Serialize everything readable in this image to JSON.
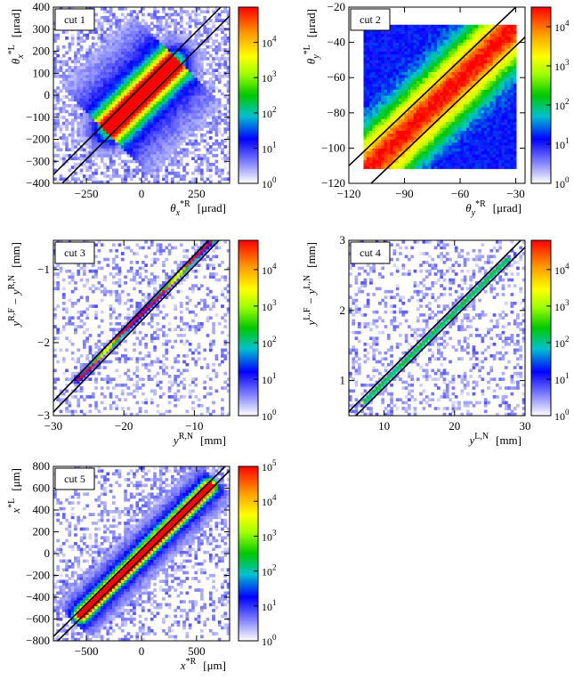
{
  "chart_data": [
    {
      "type": "heatmap",
      "panel": "cut-1",
      "cut_label": "cut 1",
      "xlabel": {
        "sym": "θ",
        "sub": "x",
        "sup": "*R",
        "unit": "[μrad]"
      },
      "ylabel": {
        "sym": "θ",
        "sub": "x",
        "sup": "*L",
        "unit": "[μrad]"
      },
      "xlim": [
        -400,
        400
      ],
      "ylim": [
        -400,
        400
      ],
      "xticks": [
        {
          "v": -250,
          "label": "−250"
        },
        {
          "v": 0,
          "label": "0"
        },
        {
          "v": 250,
          "label": "250"
        }
      ],
      "yticks": [
        {
          "v": -400,
          "label": "−400"
        },
        {
          "v": -300,
          "label": "−300"
        },
        {
          "v": -200,
          "label": "−200"
        },
        {
          "v": -100,
          "label": "−100"
        },
        {
          "v": 0,
          "label": "0"
        },
        {
          "v": 100,
          "label": "100"
        },
        {
          "v": 200,
          "label": "200"
        },
        {
          "v": 300,
          "label": "300"
        },
        {
          "v": 400,
          "label": "400"
        }
      ],
      "cut_lines": [
        {
          "slope": 1,
          "intercept": 40
        },
        {
          "slope": 1,
          "intercept": -40
        }
      ],
      "band_points": [
        [
          -150,
          -150
        ],
        [
          150,
          150
        ]
      ],
      "band_width": 25,
      "colorbar": {
        "scale": "log",
        "min_exp": 0,
        "max_exp": 5,
        "ticks": [
          {
            "exp": 0,
            "label": "10",
            "sup": "0"
          },
          {
            "exp": 1,
            "label": "10",
            "sup": "1"
          },
          {
            "exp": 2,
            "label": "10",
            "sup": "2"
          },
          {
            "exp": 3,
            "label": "10",
            "sup": "3"
          },
          {
            "exp": 4,
            "label": "10",
            "sup": "4"
          }
        ]
      }
    },
    {
      "type": "heatmap",
      "panel": "cut-2",
      "cut_label": "cut 2",
      "xlabel": {
        "sym": "θ",
        "sub": "y",
        "sup": "*R",
        "unit": "[μrad]"
      },
      "ylabel": {
        "sym": "θ",
        "sub": "y",
        "sup": "*L",
        "unit": "[μrad]"
      },
      "xlim": [
        -120,
        -25
      ],
      "ylim": [
        -120,
        -20
      ],
      "xticks": [
        {
          "v": -120,
          "label": "−120"
        },
        {
          "v": -90,
          "label": "−90"
        },
        {
          "v": -60,
          "label": "−60"
        },
        {
          "v": -30,
          "label": "−30"
        }
      ],
      "yticks": [
        {
          "v": -120,
          "label": "−120"
        },
        {
          "v": -100,
          "label": "−100"
        },
        {
          "v": -80,
          "label": "−80"
        },
        {
          "v": -60,
          "label": "−60"
        },
        {
          "v": -40,
          "label": "−40"
        },
        {
          "v": -20,
          "label": "−20"
        }
      ],
      "cut_lines": [
        {
          "slope": 1,
          "intercept": 10
        },
        {
          "slope": 1,
          "intercept": -12
        }
      ],
      "fill_rect": [
        -112,
        -112,
        -30,
        -30
      ],
      "band_points": [
        [
          -110,
          -112
        ],
        [
          -30,
          -30
        ]
      ],
      "band_width": 5,
      "colorbar": {
        "scale": "log",
        "min_exp": 0,
        "max_exp": 4.5,
        "ticks": [
          {
            "exp": 0,
            "label": "10",
            "sup": "0"
          },
          {
            "exp": 1,
            "label": "10",
            "sup": "1"
          },
          {
            "exp": 2,
            "label": "10",
            "sup": "2"
          },
          {
            "exp": 3,
            "label": "10",
            "sup": "3"
          },
          {
            "exp": 4,
            "label": "10",
            "sup": "4"
          }
        ]
      }
    },
    {
      "type": "heatmap",
      "panel": "cut-3",
      "cut_label": "cut 3",
      "xlabel": {
        "sym": "y",
        "sub": "",
        "sup": "R,N",
        "unit": "[mm]"
      },
      "ylabel": {
        "sym": "y",
        "sub": "",
        "sup": "R,F",
        "minus": "− y",
        "sup2": "R,N",
        "unit": "[mm]"
      },
      "xlim": [
        -30,
        -5
      ],
      "ylim": [
        -3,
        -0.6
      ],
      "xticks": [
        {
          "v": -30,
          "label": "−30"
        },
        {
          "v": -20,
          "label": "−20"
        },
        {
          "v": -10,
          "label": "−10"
        }
      ],
      "yticks": [
        {
          "v": -3,
          "label": "−3"
        },
        {
          "v": -2,
          "label": "−2"
        },
        {
          "v": -1,
          "label": "−1"
        }
      ],
      "cut_lines": [
        {
          "slope": 0.1,
          "intercept": 0.2
        },
        {
          "slope": 0.1,
          "intercept": 0.05
        }
      ],
      "band_points": [
        [
          -26.5,
          -2.5
        ],
        [
          -7.5,
          -0.6
        ]
      ],
      "band_width": 0.08,
      "colorbar": {
        "scale": "log",
        "min_exp": 0,
        "max_exp": 4.8,
        "ticks": [
          {
            "exp": 0,
            "label": "10",
            "sup": "0"
          },
          {
            "exp": 1,
            "label": "10",
            "sup": "1"
          },
          {
            "exp": 2,
            "label": "10",
            "sup": "2"
          },
          {
            "exp": 3,
            "label": "10",
            "sup": "3"
          },
          {
            "exp": 4,
            "label": "10",
            "sup": "4"
          }
        ]
      }
    },
    {
      "type": "heatmap",
      "panel": "cut-4",
      "cut_label": "cut 4",
      "xlabel": {
        "sym": "y",
        "sub": "",
        "sup": "L,N",
        "unit": "[mm]"
      },
      "ylabel": {
        "sym": "y",
        "sub": "",
        "sup": "L,F",
        "minus": "− y",
        "sup2": "L,N",
        "unit": "[mm]"
      },
      "xlim": [
        5,
        30
      ],
      "ylim": [
        0.5,
        3
      ],
      "xticks": [
        {
          "v": 10,
          "label": "10"
        },
        {
          "v": 20,
          "label": "20"
        },
        {
          "v": 30,
          "label": "30"
        }
      ],
      "yticks": [
        {
          "v": 1,
          "label": "1"
        },
        {
          "v": 2,
          "label": "2"
        },
        {
          "v": 3,
          "label": "3"
        }
      ],
      "cut_lines": [
        {
          "slope": 0.1,
          "intercept": 0.06
        },
        {
          "slope": 0.1,
          "intercept": -0.1
        }
      ],
      "band_points": [
        [
          7,
          0.68
        ],
        [
          27.5,
          2.73
        ]
      ],
      "band_width": 0.06,
      "colorbar": {
        "scale": "log",
        "min_exp": 0,
        "max_exp": 4.8,
        "ticks": [
          {
            "exp": 0,
            "label": "10",
            "sup": "0"
          },
          {
            "exp": 1,
            "label": "10",
            "sup": "1"
          },
          {
            "exp": 2,
            "label": "10",
            "sup": "2"
          },
          {
            "exp": 3,
            "label": "10",
            "sup": "3"
          },
          {
            "exp": 4,
            "label": "10",
            "sup": "4"
          }
        ]
      }
    },
    {
      "type": "heatmap",
      "panel": "cut-5",
      "cut_label": "cut 5",
      "xlabel": {
        "sym": "x",
        "sub": "",
        "sup": "*R",
        "unit": "[μm]"
      },
      "ylabel": {
        "sym": "x",
        "sub": "",
        "sup": "*L",
        "unit": "[μm]"
      },
      "xlim": [
        -800,
        800
      ],
      "ylim": [
        -800,
        800
      ],
      "xticks": [
        {
          "v": -500,
          "label": "−500"
        },
        {
          "v": 0,
          "label": "0"
        },
        {
          "v": 500,
          "label": "500"
        }
      ],
      "yticks": [
        {
          "v": -800,
          "label": "−800"
        },
        {
          "v": -600,
          "label": "−600"
        },
        {
          "v": -400,
          "label": "−400"
        },
        {
          "v": -200,
          "label": "−200"
        },
        {
          "v": 0,
          "label": "0"
        },
        {
          "v": 200,
          "label": "200"
        },
        {
          "v": 400,
          "label": "400"
        },
        {
          "v": 600,
          "label": "600"
        },
        {
          "v": 800,
          "label": "800"
        }
      ],
      "cut_lines": [
        {
          "slope": 1,
          "intercept": 40
        },
        {
          "slope": 1,
          "intercept": -40
        }
      ],
      "band_points": [
        [
          -550,
          -560
        ],
        [
          620,
          620
        ]
      ],
      "band_width": 20,
      "colorbar": {
        "scale": "log",
        "min_exp": 0,
        "max_exp": 5,
        "ticks": [
          {
            "exp": 0,
            "label": "10",
            "sup": "0"
          },
          {
            "exp": 1,
            "label": "10",
            "sup": "1"
          },
          {
            "exp": 2,
            "label": "10",
            "sup": "2"
          },
          {
            "exp": 3,
            "label": "10",
            "sup": "3"
          },
          {
            "exp": 4,
            "label": "10",
            "sup": "4"
          },
          {
            "exp": 5,
            "label": "10",
            "sup": "5"
          }
        ]
      }
    }
  ],
  "colorscale": [
    "#ffffff",
    "#7f7fff",
    "#0000ff",
    "#00c8c8",
    "#00c800",
    "#c8ff00",
    "#ffff00",
    "#ff9900",
    "#ff0000"
  ]
}
